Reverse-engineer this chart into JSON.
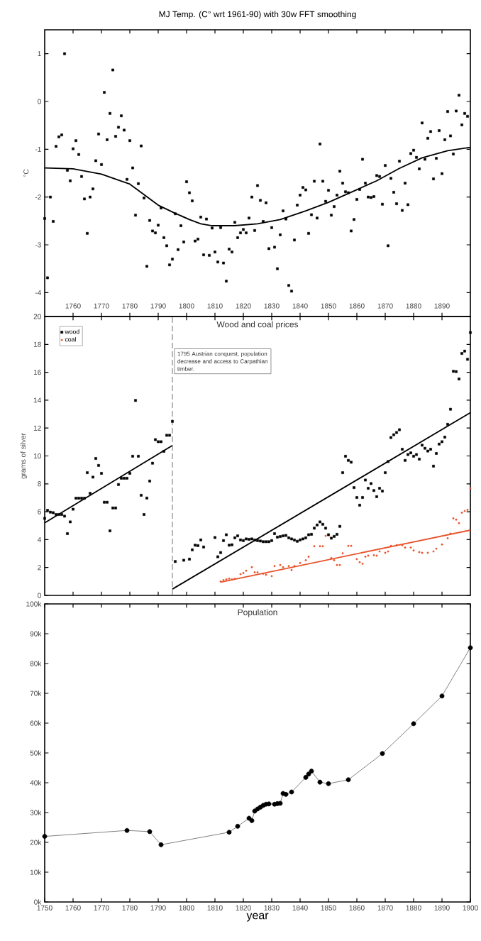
{
  "chart_data": [
    {
      "type": "scatter",
      "title": "MJ Temp. (C° wrt 1961-90) with 30w FFT smoothing",
      "ylabel": "°C",
      "xlim": [
        1750,
        1900
      ],
      "ylim": [
        -4.5,
        1.5
      ],
      "xticks": [
        1760,
        1770,
        1780,
        1790,
        1800,
        1810,
        1820,
        1830,
        1840,
        1850,
        1860,
        1870,
        1880,
        1890
      ],
      "yticks": [
        -4,
        -3,
        -2,
        -1,
        0,
        1
      ],
      "marker": "square",
      "legend": false,
      "series": [
        {
          "type": "scatter",
          "color": "#000000",
          "x": [
            1750,
            1751,
            1752,
            1753,
            1754,
            1755,
            1756,
            1757,
            1758,
            1759,
            1760,
            1761,
            1762,
            1763,
            1764,
            1765,
            1766,
            1767,
            1768,
            1769,
            1770,
            1771,
            1772,
            1773,
            1774,
            1775,
            1776,
            1777,
            1778,
            1779,
            1780,
            1781,
            1782,
            1783,
            1784,
            1785,
            1786,
            1787,
            1788,
            1789,
            1790,
            1791,
            1792,
            1793,
            1794,
            1795,
            1796,
            1797,
            1798,
            1799,
            1800,
            1801,
            1802,
            1803,
            1804,
            1805,
            1806,
            1807,
            1808,
            1809,
            1810,
            1811,
            1812,
            1813,
            1814,
            1815,
            1816,
            1817,
            1818,
            1819,
            1820,
            1821,
            1822,
            1823,
            1824,
            1825,
            1826,
            1827,
            1828,
            1829,
            1830,
            1831,
            1832,
            1833,
            1834,
            1835,
            1836,
            1837,
            1838,
            1839,
            1840,
            1841,
            1842,
            1843,
            1844,
            1845,
            1846,
            1847,
            1848,
            1849,
            1850,
            1851,
            1852,
            1853,
            1854,
            1855,
            1856,
            1857,
            1858,
            1859,
            1860,
            1861,
            1862,
            1863,
            1864,
            1865,
            1866,
            1867,
            1868,
            1869,
            1870,
            1871,
            1872,
            1873,
            1874,
            1875,
            1876,
            1877,
            1878,
            1879,
            1880,
            1881,
            1882,
            1883,
            1884,
            1885,
            1886,
            1887,
            1888,
            1889,
            1890,
            1891,
            1892,
            1893,
            1894,
            1895,
            1896,
            1897,
            1898,
            1899
          ],
          "values": [
            -2.45,
            -3.69,
            -2.0,
            -2.51,
            -0.94,
            -0.74,
            -0.7,
            1.0,
            -1.44,
            -1.66,
            -0.99,
            -0.82,
            -1.11,
            -1.57,
            -2.04,
            -2.76,
            -2.0,
            -1.83,
            -1.24,
            -0.68,
            -1.32,
            0.19,
            -0.8,
            -0.25,
            0.66,
            -0.73,
            -0.54,
            -0.3,
            -0.6,
            -1.63,
            -0.82,
            -1.39,
            -2.38,
            -1.72,
            -0.93,
            -2.02,
            -3.45,
            -2.49,
            -2.71,
            -2.75,
            -2.59,
            -2.23,
            -2.85,
            -3.02,
            -3.42,
            -3.3,
            -2.35,
            -3.1,
            -2.6,
            -2.94,
            -1.68,
            -1.91,
            -2.08,
            -2.92,
            -2.88,
            -2.42,
            -3.21,
            -2.46,
            -3.22,
            -2.65,
            -3.15,
            -3.36,
            -2.64,
            -3.38,
            -3.76,
            -3.09,
            -3.15,
            -2.53,
            -2.85,
            -2.75,
            -2.68,
            -2.75,
            -2.44,
            -2.0,
            -2.7,
            -1.76,
            -2.07,
            -2.51,
            -2.12,
            -3.08,
            -2.64,
            -3.05,
            -3.5,
            -2.79,
            -2.29,
            -2.46,
            -3.85,
            -3.97,
            -2.9,
            -2.17,
            -1.96,
            -1.8,
            -1.85,
            -2.76,
            -2.37,
            -1.67,
            -2.44,
            -0.89,
            -1.67,
            -2.09,
            -1.86,
            -2.38,
            -2.2,
            -1.96,
            -1.46,
            -1.71,
            -1.89,
            -1.91,
            -2.71,
            -2.47,
            -2.05,
            -1.84,
            -1.21,
            -1.71,
            -2.0,
            -2.01,
            -1.99,
            -1.55,
            -1.57,
            -2.15,
            -1.34,
            -3.02,
            -1.61,
            -1.9,
            -2.14,
            -1.25,
            -2.28,
            -1.71,
            -2.16,
            -1.09,
            -1.02,
            -1.17,
            -1.41,
            -0.45,
            -1.21,
            -0.77,
            -0.63,
            -1.62,
            -1.19,
            -0.61,
            -1.51,
            -0.8,
            -0.21,
            -0.72,
            -1.1,
            -0.2,
            0.13,
            -0.49,
            -0.25,
            -0.31
          ]
        },
        {
          "type": "line",
          "marker": "none",
          "color": "#000000",
          "x": [
            1750,
            1760,
            1770,
            1780,
            1785,
            1790,
            1796,
            1801,
            1805,
            1809,
            1814,
            1817,
            1825,
            1833,
            1842,
            1850,
            1858,
            1867,
            1875,
            1883,
            1892,
            1900
          ],
          "values": [
            -1.39,
            -1.41,
            -1.52,
            -1.73,
            -1.95,
            -2.17,
            -2.34,
            -2.47,
            -2.56,
            -2.6,
            -2.6,
            -2.6,
            -2.56,
            -2.47,
            -2.29,
            -2.11,
            -1.9,
            -1.66,
            -1.4,
            -1.18,
            -1.03,
            -0.96
          ]
        }
      ]
    },
    {
      "type": "scatter",
      "title": "Wood and coal prices",
      "ylabel": "grams of silver",
      "xlim": [
        1750,
        1900
      ],
      "ylim": [
        0,
        20
      ],
      "xticks": [
        1760,
        1770,
        1780,
        1790,
        1800,
        1810,
        1820,
        1830,
        1840,
        1850,
        1860,
        1870,
        1880,
        1890
      ],
      "yticks": [
        0,
        2,
        4,
        6,
        8,
        10,
        12,
        14,
        16,
        18,
        20
      ],
      "tick_labels": "y",
      "legend": "top left",
      "ref_lines": [
        {
          "axis": "x",
          "value": 1795,
          "color": "#666666",
          "line_style": "dashed"
        }
      ],
      "annotations": [
        "1795 Austrian conquest, population decrease and access to Carpathian timber."
      ],
      "series": [
        {
          "type": "scatter",
          "name": "wood",
          "marker": "square",
          "color": "#000000",
          "x": [
            1750,
            1751,
            1752,
            1753,
            1754,
            1755,
            1756,
            1757,
            1758,
            1759,
            1760,
            1761,
            1762,
            1763,
            1764,
            1765,
            1766,
            1767,
            1768,
            1769,
            1770,
            1771,
            1772,
            1773,
            1774,
            1775,
            1776,
            1777,
            1778,
            1779,
            1780,
            1781,
            1782,
            1783,
            1784,
            1785,
            1786,
            1787,
            1788,
            1789,
            1790,
            1791,
            1792,
            1793,
            1794,
            1795,
            1796,
            1799,
            1801,
            1802,
            1803,
            1804,
            1805,
            1806,
            1810,
            1811,
            1812,
            1813,
            1814,
            1815,
            1816,
            1817,
            1818,
            1819,
            1820,
            1821,
            1822,
            1823,
            1824,
            1825,
            1826,
            1827,
            1828,
            1829,
            1830,
            1831,
            1832,
            1833,
            1834,
            1835,
            1836,
            1837,
            1838,
            1839,
            1840,
            1841,
            1842,
            1843,
            1844,
            1845,
            1846,
            1847,
            1848,
            1849,
            1850,
            1851,
            1852,
            1853,
            1854,
            1855,
            1856,
            1857,
            1858,
            1859,
            1860,
            1861,
            1862,
            1863,
            1864,
            1865,
            1866,
            1867,
            1868,
            1869,
            1870,
            1871,
            1872,
            1873,
            1874,
            1875,
            1876,
            1877,
            1878,
            1879,
            1880,
            1881,
            1882,
            1883,
            1884,
            1885,
            1886,
            1887,
            1888,
            1889,
            1890,
            1891,
            1892,
            1893,
            1894,
            1895,
            1896,
            1897,
            1898,
            1899,
            1900
          ],
          "values": [
            5.52,
            6.1,
            5.97,
            5.93,
            5.8,
            5.8,
            5.8,
            5.68,
            4.43,
            5.27,
            6.18,
            6.97,
            6.97,
            6.97,
            6.97,
            8.8,
            7.32,
            8.48,
            9.82,
            9.32,
            8.75,
            6.68,
            6.68,
            4.63,
            6.27,
            6.27,
            7.95,
            8.4,
            8.4,
            8.4,
            8.75,
            9.98,
            13.98,
            9.98,
            7.18,
            5.8,
            6.98,
            8.2,
            9.48,
            11.17,
            11.02,
            11.02,
            10.33,
            11.48,
            11.48,
            12.48,
            2.43,
            2.52,
            2.6,
            3.27,
            3.6,
            3.57,
            3.98,
            3.47,
            4.15,
            2.77,
            3.07,
            3.93,
            4.35,
            3.6,
            3.63,
            4.13,
            4.27,
            3.98,
            3.93,
            4.05,
            4.02,
            4.05,
            3.97,
            3.93,
            3.9,
            3.85,
            3.85,
            3.85,
            3.93,
            4.43,
            4.18,
            4.22,
            4.27,
            4.3,
            4.13,
            4.05,
            3.97,
            3.88,
            3.98,
            4.05,
            4.13,
            4.35,
            4.38,
            4.82,
            5.05,
            5.27,
            5.1,
            4.82,
            4.35,
            4.1,
            4.23,
            4.38,
            4.95,
            8.8,
            9.98,
            9.68,
            9.55,
            7.73,
            7.02,
            6.47,
            7.02,
            8.27,
            7.68,
            8.02,
            7.52,
            7.08,
            7.68,
            7.48,
            8.8,
            9.6,
            11.32,
            11.52,
            11.68,
            11.88,
            10.48,
            9.68,
            10.1,
            10.22,
            9.98,
            10.1,
            9.77,
            10.77,
            10.55,
            10.35,
            10.48,
            9.27,
            10.18,
            10.85,
            11.02,
            11.35,
            12.27,
            13.35,
            16.07,
            16.05,
            15.52,
            17.35,
            17.52,
            16.93,
            18.85
          ]
        },
        {
          "type": "scatter",
          "name": "coal",
          "marker": "circle",
          "color": "#e8532b",
          "x": [
            1812,
            1813,
            1814,
            1815,
            1816,
            1817,
            1819,
            1820,
            1821,
            1823,
            1824,
            1825,
            1827,
            1828,
            1830,
            1831,
            1833,
            1834,
            1836,
            1837,
            1838,
            1840,
            1842,
            1843,
            1845,
            1847,
            1848,
            1849,
            1851,
            1852,
            1853,
            1854,
            1855,
            1857,
            1858,
            1860,
            1861,
            1862,
            1863,
            1864,
            1866,
            1867,
            1868,
            1870,
            1871,
            1872,
            1874,
            1876,
            1877,
            1879,
            1880,
            1882,
            1883,
            1885,
            1887,
            1888,
            1890,
            1892,
            1893,
            1894,
            1895,
            1896,
            1897,
            1898,
            1899,
            1900
          ],
          "values": [
            1.0,
            1.1,
            1.15,
            1.2,
            1.15,
            1.18,
            1.52,
            1.6,
            1.77,
            2.02,
            1.65,
            1.65,
            1.55,
            1.48,
            1.38,
            2.1,
            2.18,
            2.02,
            2.1,
            1.82,
            2.1,
            2.32,
            2.52,
            2.77,
            3.52,
            3.52,
            3.52,
            4.27,
            2.68,
            2.52,
            2.18,
            2.18,
            3.02,
            3.55,
            3.55,
            2.6,
            2.38,
            2.27,
            2.77,
            2.85,
            2.88,
            2.85,
            3.15,
            3.05,
            3.15,
            3.55,
            3.6,
            3.6,
            3.43,
            3.43,
            3.22,
            3.1,
            3.05,
            3.05,
            3.15,
            3.35,
            3.65,
            4.1,
            4.43,
            5.52,
            5.43,
            5.18,
            5.93,
            6.05,
            6.13,
            7.68
          ]
        },
        {
          "type": "line",
          "marker": "none",
          "color": "#000000",
          "x": [
            1750,
            1795
          ],
          "values": [
            5.2,
            10.75
          ]
        },
        {
          "type": "line",
          "marker": "none",
          "color": "#000000",
          "x": [
            1795,
            1900
          ],
          "values": [
            0.45,
            13.1
          ]
        },
        {
          "type": "line",
          "marker": "none",
          "color": "#e8532b",
          "x": [
            1812,
            1900
          ],
          "values": [
            0.95,
            4.68
          ]
        }
      ]
    },
    {
      "type": "line",
      "title": "Population",
      "xlabel": "year",
      "xlim": [
        1750,
        1900
      ],
      "ylim": [
        0,
        100000
      ],
      "xticks": [
        1750,
        1760,
        1770,
        1780,
        1790,
        1800,
        1810,
        1820,
        1830,
        1840,
        1850,
        1860,
        1870,
        1880,
        1890,
        1900
      ],
      "yticks": [
        {
          "value": 0,
          "label": "0k"
        },
        {
          "value": 10000,
          "label": "10k"
        },
        {
          "value": 20000,
          "label": "20k"
        },
        {
          "value": 30000,
          "label": "30k"
        },
        {
          "value": 40000,
          "label": "40k"
        },
        {
          "value": 50000,
          "label": "50k"
        },
        {
          "value": 60000,
          "label": "60k"
        },
        {
          "value": 70000,
          "label": "70k"
        },
        {
          "value": 80000,
          "label": "80k"
        },
        {
          "value": 90000,
          "label": "90k"
        },
        {
          "value": 100000,
          "label": "100k"
        }
      ],
      "marker": "circle",
      "legend": false,
      "series": [
        {
          "color": "#000000",
          "x": [
            1750,
            1779,
            1787,
            1791,
            1815,
            1818,
            1822,
            1823,
            1824,
            1825,
            1826,
            1827,
            1828,
            1829,
            1831,
            1832,
            1833,
            1834,
            1835,
            1837,
            1842,
            1843,
            1844,
            1847,
            1850,
            1857,
            1869,
            1880,
            1890,
            1900
          ],
          "values": [
            22000,
            24000,
            23600,
            19200,
            23400,
            25400,
            28100,
            27300,
            30500,
            31200,
            31800,
            32400,
            32800,
            32900,
            32800,
            33000,
            33100,
            36400,
            36100,
            36900,
            41800,
            42900,
            43900,
            40200,
            39700,
            41000,
            49800,
            59800,
            69100,
            85300
          ]
        }
      ]
    }
  ]
}
